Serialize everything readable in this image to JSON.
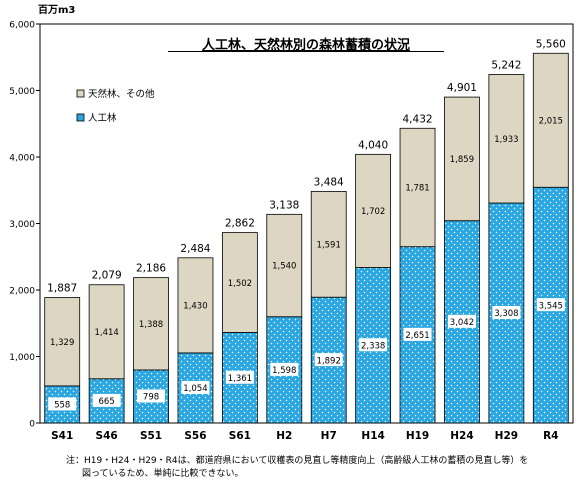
{
  "chart_data": {
    "type": "bar",
    "stacked": true,
    "title": "人工林、天然林別の森林蓄積の状況",
    "unit_label": "百万m3",
    "categories": [
      "S41",
      "S46",
      "S51",
      "S56",
      "S61",
      "H2",
      "H7",
      "H14",
      "H19",
      "H24",
      "H29",
      "R4"
    ],
    "series": [
      {
        "name": "人工林",
        "values": [
          558,
          665,
          798,
          1054,
          1361,
          1598,
          1892,
          2338,
          2651,
          3042,
          3308,
          3545
        ],
        "color": "#2aa7e0"
      },
      {
        "name": "天然林、その他",
        "values": [
          1329,
          1414,
          1388,
          1430,
          1502,
          1540,
          1591,
          1702,
          1781,
          1859,
          1933,
          2015
        ],
        "color": "#ddd6c2"
      }
    ],
    "totals": [
      1887,
      2079,
      2186,
      2484,
      2862,
      3138,
      3484,
      4040,
      4432,
      4901,
      5242,
      5560
    ],
    "ylim": [
      0,
      6000
    ],
    "yticks": [
      0,
      1000,
      2000,
      3000,
      4000,
      5000,
      6000
    ],
    "ytick_labels": [
      "0",
      "1,000",
      "2,000",
      "3,000",
      "4,000",
      "5,000",
      "6,000"
    ],
    "grid": false,
    "legend": "upper-left",
    "title_underlined": true
  },
  "note": {
    "line1": "注：H19・H24・H29・R4は、都道府県において収穫表の見直し等精度向上（高齢級人工林の蓄積の見直し等）を",
    "line2": "図っているため、単純に比較できない。"
  }
}
